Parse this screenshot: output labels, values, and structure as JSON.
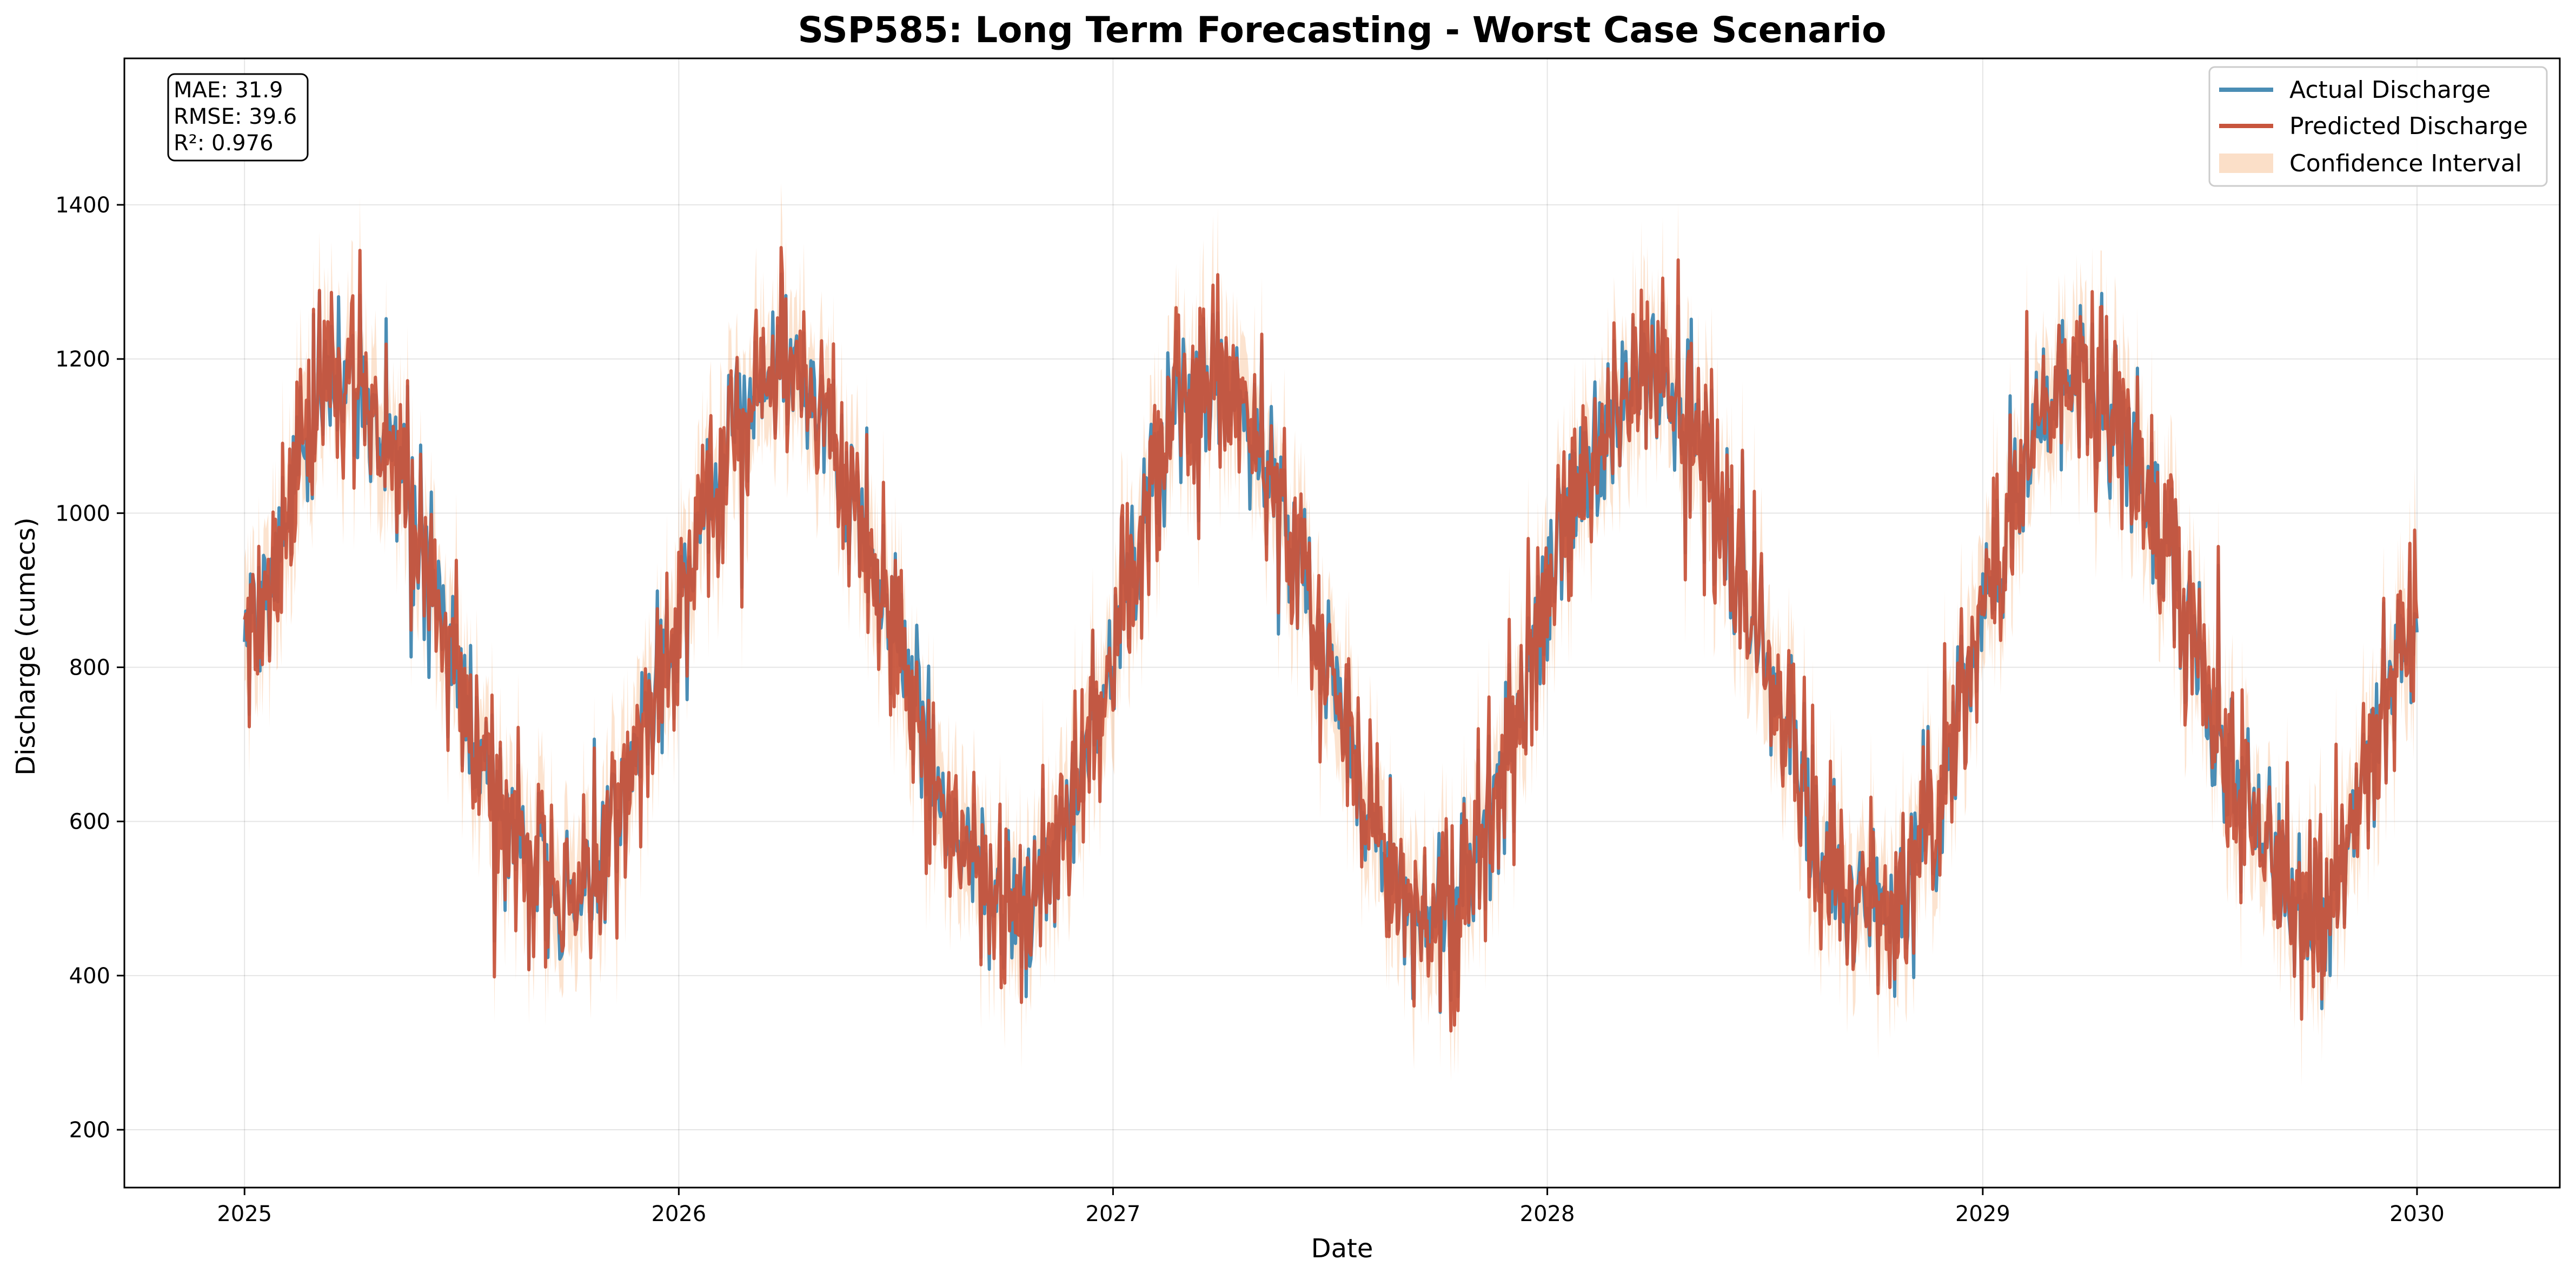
{
  "chart_data": {
    "type": "line",
    "title": "SSP585: Long Term Forecasting - Worst Case Scenario",
    "xlabel": "Date",
    "ylabel": "Discharge (cumecs)",
    "xlim": [
      "2024-09-22",
      "2030-05-01"
    ],
    "ylim": [
      125,
      1590
    ],
    "x_ticks": [
      "2025",
      "2026",
      "2027",
      "2028",
      "2029",
      "2030"
    ],
    "y_ticks": [
      200,
      400,
      600,
      800,
      1000,
      1200,
      1400
    ],
    "grid": true,
    "legend_position": "top-right",
    "x_start": "2025-01-01",
    "x_end": "2030-01-01",
    "x_step_days": 1,
    "data_note": "daily series; values approximated from the plotted sinusoidal trend with noise",
    "series": [
      {
        "name": "Actual Discharge",
        "color": "#4a8db5",
        "style": "line"
      },
      {
        "name": "Predicted Discharge",
        "color": "#c8553d",
        "style": "line"
      },
      {
        "name": "Confidence Interval",
        "color": "#f4a261",
        "style": "band"
      }
    ],
    "trend": {
      "mean": 830,
      "amplitude": 340,
      "peak_dates": [
        "2025-03-20",
        "2026-03-25",
        "2027-03-25",
        "2028-03-20",
        "2029-03-20"
      ],
      "trough_dates": [
        "2025-09-25",
        "2026-10-10",
        "2027-09-25",
        "2028-10-05",
        "2029-10-05"
      ],
      "noise_std": 55,
      "ci_half_width": 70
    },
    "metrics": {
      "mae": "MAE: 31.9",
      "rmse": "RMSE: 39.6",
      "r2": "R²: 0.976"
    }
  }
}
